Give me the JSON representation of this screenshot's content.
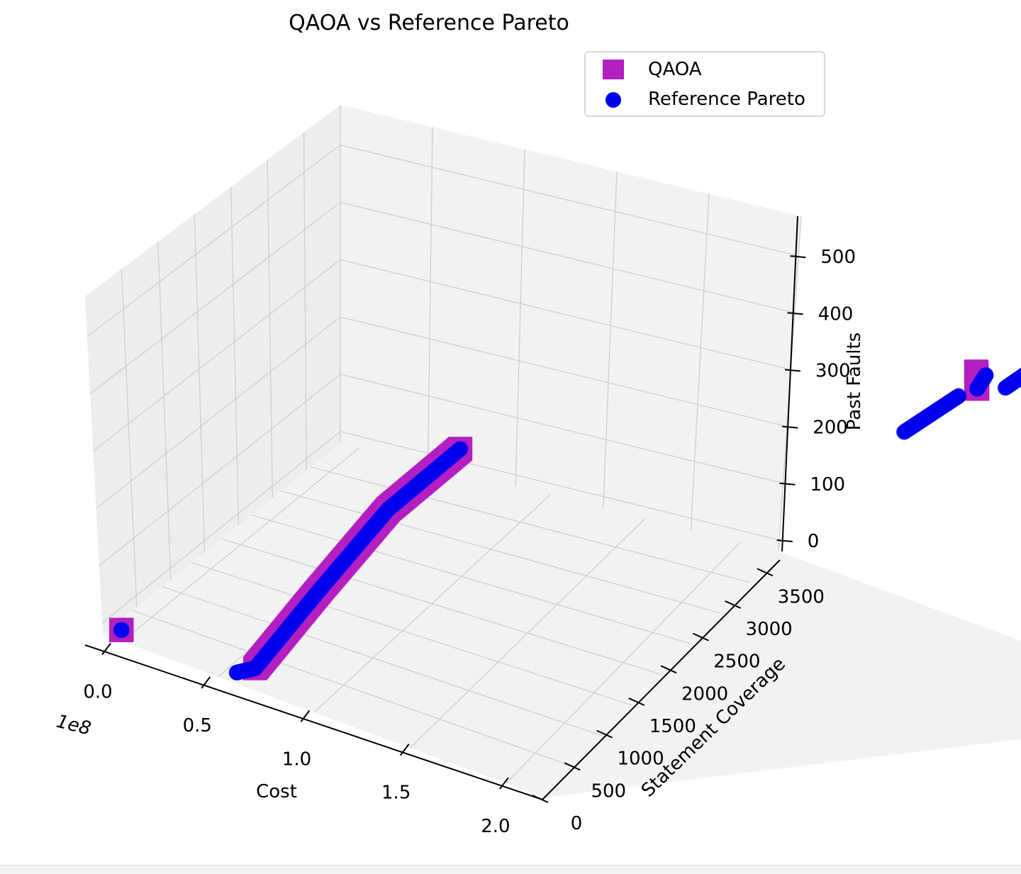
{
  "chart_data": {
    "type": "scatter",
    "projection": "3d",
    "title": "QAOA vs Reference Pareto",
    "xlabel": "Cost",
    "ylabel": "Statement Coverage",
    "zlabel": "Past Faults",
    "x_offset_text": "1e8",
    "xlim": [
      -0.1,
      2.2
    ],
    "ylim": [
      0,
      3700
    ],
    "zlim": [
      -20,
      570
    ],
    "xticks": [
      0.0,
      0.5,
      1.0,
      1.5,
      2.0
    ],
    "xtick_labels": [
      "0.0",
      "0.5",
      "1.0",
      "1.5",
      "2.0"
    ],
    "yticks": [
      0,
      500,
      1000,
      1500,
      2000,
      2500,
      3000,
      3500
    ],
    "ytick_labels": [
      "0",
      "500",
      "1000",
      "1500",
      "2000",
      "2500",
      "3000",
      "3500"
    ],
    "zticks": [
      0,
      100,
      200,
      300,
      400,
      500
    ],
    "ztick_labels": [
      "0",
      "100",
      "200",
      "300",
      "400",
      "500"
    ],
    "grid": true,
    "legend": {
      "position": "top-right",
      "entries": [
        "QAOA",
        "Reference Pareto"
      ]
    },
    "series": [
      {
        "name": "QAOA",
        "marker": "square",
        "color": "#b31fc0",
        "segments": [
          {
            "x": [
              0.0,
              0.0
            ],
            "y": [
              0,
              0
            ],
            "z": [
              0,
              0
            ]
          },
          {
            "x": [
              0.7,
              1.05,
              1.45,
              1.85
            ],
            "y": [
              0,
              0,
              0,
              0
            ],
            "z": [
              20,
              195,
              390,
              545
            ]
          },
          {
            "x": [
              1.0,
              1.0
            ],
            "y": [
              3700,
              3700
            ],
            "z": [
              400,
              430
            ]
          }
        ]
      },
      {
        "name": "Reference Pareto",
        "marker": "circle",
        "color": "#0000ee",
        "segments": [
          {
            "x": [
              0.0,
              0.0
            ],
            "y": [
              0,
              0
            ],
            "z": [
              0,
              0
            ]
          },
          {
            "x": [
              0.6,
              0.7,
              1.05,
              1.45,
              1.85
            ],
            "y": [
              0,
              0,
              0,
              0,
              0
            ],
            "z": [
              0,
              20,
              195,
              390,
              545
            ]
          },
          {
            "x": [
              0.6,
              0.9
            ],
            "y": [
              3700,
              3700
            ],
            "z": [
              275,
              375
            ]
          },
          {
            "x": [
              1.0,
              1.05
            ],
            "y": [
              3700,
              3700
            ],
            "z": [
              400,
              430
            ]
          },
          {
            "x": [
              1.15,
              1.5
            ],
            "y": [
              3700,
              3700
            ],
            "z": [
              420,
              540
            ]
          }
        ]
      }
    ]
  },
  "colors": {
    "pane": "#f2f2f2",
    "pane_side": "#ebebeb",
    "grid": "#cfcfcf",
    "axis": "#000000",
    "qaoa": "#b31fc0",
    "reference": "#0000ee"
  }
}
